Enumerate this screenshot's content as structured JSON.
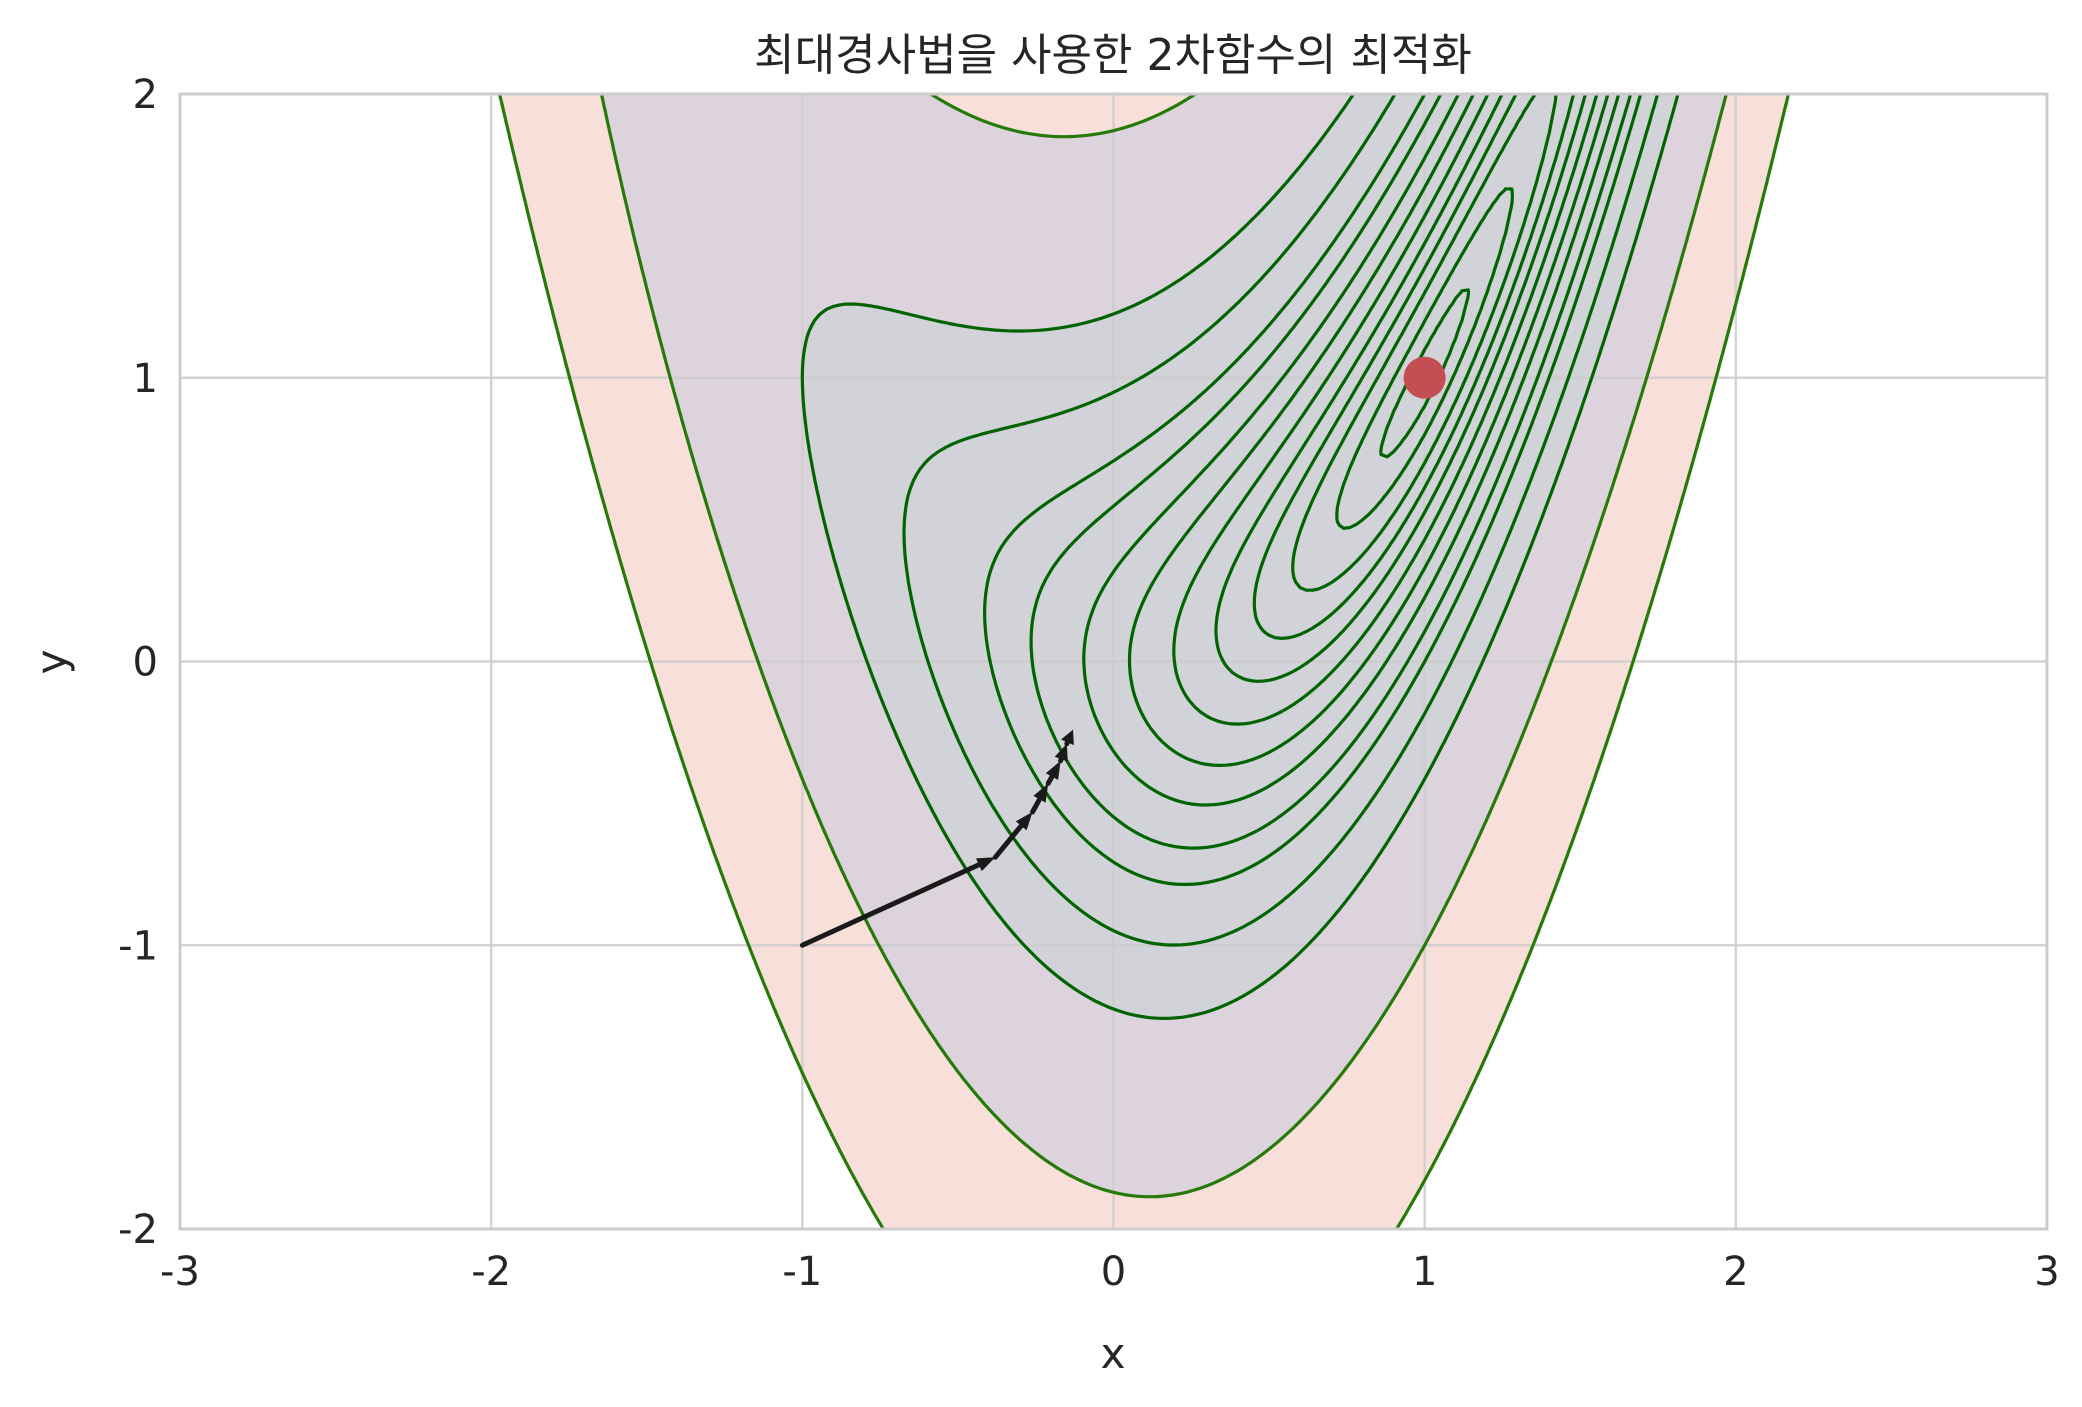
{
  "chart_data": {
    "type": "contour",
    "title": "최대경사법을 사용한 2차함수의 최적화",
    "xlabel": "x",
    "ylabel": "y",
    "xlim": [
      -3,
      3
    ],
    "ylim": [
      -2,
      2
    ],
    "grid": true,
    "x_ticks": [
      -3,
      -2,
      -1,
      0,
      1,
      2,
      3
    ],
    "x_tick_labels": [
      "-3",
      "-2",
      "-1",
      "0",
      "1",
      "2",
      "3"
    ],
    "y_ticks": [
      -2,
      -1,
      0,
      1,
      2
    ],
    "y_tick_labels": [
      "-2",
      "-1",
      "0",
      "1",
      "2"
    ],
    "function": "(1 - x)^2 + 2 (y - x^2)^2",
    "filled_levels": [
      {
        "range": [
          0,
          4
        ],
        "color": "#d2d2d9"
      },
      {
        "range": [
          4,
          8
        ],
        "color": "#ddd3dd"
      },
      {
        "range": [
          8,
          16
        ],
        "color": "#f9dfda"
      }
    ],
    "contour_lines": {
      "color": "#006400",
      "outer_color": "#267a0a",
      "levels": [
        0.02,
        0.08,
        0.18,
        0.3,
        0.45,
        0.65,
        0.9,
        1.2,
        1.6,
        2.0,
        2.8,
        4.0,
        8.0,
        16.0
      ]
    },
    "minimum_point": {
      "x": 1,
      "y": 1,
      "color": "#c44e52"
    },
    "descent_path": {
      "color": "#1a1a1a",
      "points": [
        [
          -1.0,
          -1.0
        ],
        [
          -0.38,
          -0.69
        ],
        [
          -0.26,
          -0.53
        ],
        [
          -0.21,
          -0.43
        ],
        [
          -0.17,
          -0.35
        ],
        [
          -0.15,
          -0.29
        ],
        [
          -0.13,
          -0.24
        ]
      ]
    }
  }
}
